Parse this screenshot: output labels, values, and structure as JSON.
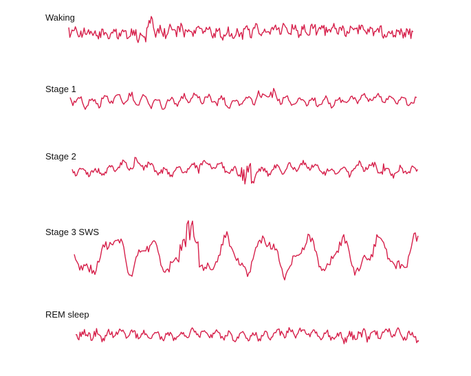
{
  "trace_color": "#d61f4a",
  "stages": [
    {
      "label": "Waking"
    },
    {
      "label": "Stage 1"
    },
    {
      "label": "Stage 2"
    },
    {
      "label": "Stage 3 SWS"
    },
    {
      "label": "REM sleep"
    }
  ]
}
